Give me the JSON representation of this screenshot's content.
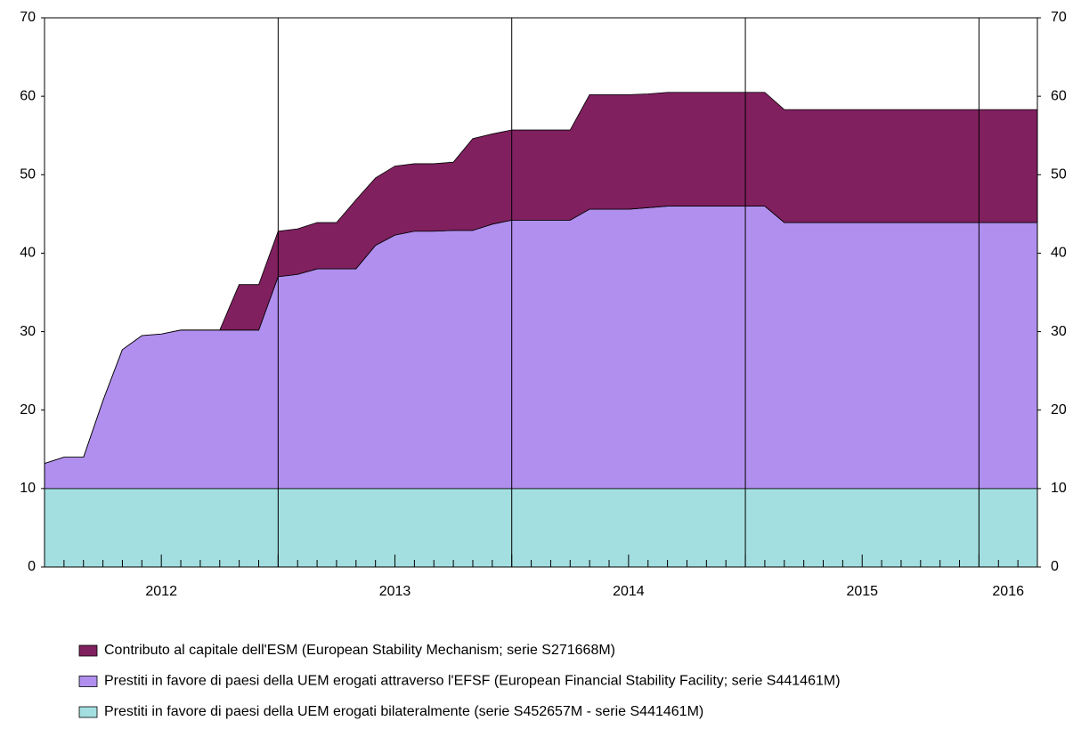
{
  "chart_data": {
    "type": "stacked_area",
    "x": [
      2012,
      2012.083,
      2012.167,
      2012.25,
      2012.333,
      2012.417,
      2012.5,
      2012.583,
      2012.667,
      2012.75,
      2012.833,
      2012.917,
      2013,
      2013.083,
      2013.167,
      2013.25,
      2013.333,
      2013.417,
      2013.5,
      2013.583,
      2013.667,
      2013.75,
      2013.833,
      2013.917,
      2014,
      2014.083,
      2014.167,
      2014.25,
      2014.333,
      2014.417,
      2014.5,
      2014.583,
      2014.667,
      2014.75,
      2014.833,
      2014.917,
      2015,
      2015.083,
      2015.167,
      2015.25,
      2015.333,
      2015.417,
      2015.5,
      2015.583,
      2015.667,
      2015.75,
      2015.833,
      2015.917,
      2016,
      2016.083,
      2016.167,
      2016.25
    ],
    "series": [
      {
        "name": "Prestiti in favore di paesi della UEM erogati bilateralmente (serie S452657M - serie S441461M)",
        "color": "#a3dfe0",
        "values": [
          10,
          10,
          10,
          10,
          10,
          10,
          10,
          10,
          10,
          10,
          10,
          10,
          10,
          10,
          10,
          10,
          10,
          10,
          10,
          10,
          10,
          10,
          10,
          10,
          10,
          10,
          10,
          10,
          10,
          10,
          10,
          10,
          10,
          10,
          10,
          10,
          10,
          10,
          10,
          10,
          10,
          10,
          10,
          10,
          10,
          10,
          10,
          10,
          10,
          10,
          10,
          10
        ]
      },
      {
        "name": "Prestiti in favore di paesi della UEM erogati attraverso l'EFSF (European Financial Stability Facility; serie S441461M)",
        "color": "#b18fee",
        "values": [
          3.2,
          4.0,
          4.0,
          11.2,
          17.7,
          19.5,
          19.7,
          20.2,
          20.2,
          20.2,
          20.2,
          20.2,
          27.0,
          27.3,
          28.0,
          28.0,
          28.0,
          31.0,
          32.3,
          32.8,
          32.8,
          32.9,
          32.9,
          33.7,
          34.2,
          34.2,
          34.2,
          34.2,
          35.6,
          35.6,
          35.6,
          35.8,
          36.0,
          36.0,
          36.0,
          36.0,
          36.0,
          36.0,
          33.9,
          33.9,
          33.9,
          33.9,
          33.9,
          33.9,
          33.9,
          33.9,
          33.9,
          33.9,
          33.9,
          33.9,
          33.9,
          33.9
        ]
      },
      {
        "name": "Contributo al capitale dell'ESM (European Stability Mechanism; serie S271668M)",
        "color": "#80205f",
        "values": [
          0,
          0,
          0,
          0,
          0,
          0,
          0,
          0,
          0,
          0,
          5.8,
          5.8,
          5.8,
          5.8,
          5.9,
          5.9,
          8.8,
          8.6,
          8.8,
          8.6,
          8.6,
          8.7,
          11.7,
          11.5,
          11.5,
          11.5,
          11.5,
          11.5,
          14.6,
          14.6,
          14.6,
          14.5,
          14.5,
          14.5,
          14.5,
          14.5,
          14.5,
          14.5,
          14.4,
          14.4,
          14.4,
          14.4,
          14.4,
          14.4,
          14.4,
          14.4,
          14.4,
          14.4,
          14.4,
          14.4,
          14.4,
          14.4
        ]
      }
    ],
    "xlim": [
      2012,
      2016.25
    ],
    "xticks": [
      {
        "value": 2012.5,
        "label": "2012"
      },
      {
        "value": 2013.5,
        "label": "2013"
      },
      {
        "value": 2014.5,
        "label": "2014"
      },
      {
        "value": 2015.5,
        "label": "2015"
      },
      {
        "value": 2016.125,
        "label": "2016"
      }
    ],
    "xgrid": [
      2013,
      2014,
      2015,
      2016
    ],
    "ylim": [
      0,
      70
    ],
    "yticks": [
      0,
      10,
      20,
      30,
      40,
      50,
      60,
      70
    ],
    "y2lim": [
      0,
      70
    ],
    "y2ticks": [
      0,
      10,
      20,
      30,
      40,
      50,
      60,
      70
    ],
    "legend": "bottom"
  }
}
